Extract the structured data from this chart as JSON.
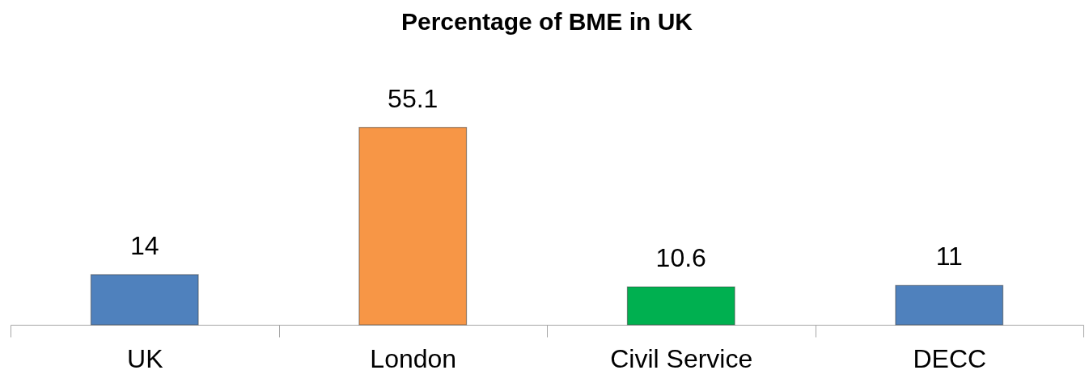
{
  "chart_data": {
    "type": "bar",
    "title": "Percentage of BME in UK",
    "categories": [
      "UK",
      "London",
      "Civil Service",
      "DECC"
    ],
    "values": [
      14,
      55.1,
      10.6,
      11
    ],
    "colors": [
      "#4f81bd",
      "#f79646",
      "#00b050",
      "#4f81bd"
    ],
    "data_labels": true
  }
}
